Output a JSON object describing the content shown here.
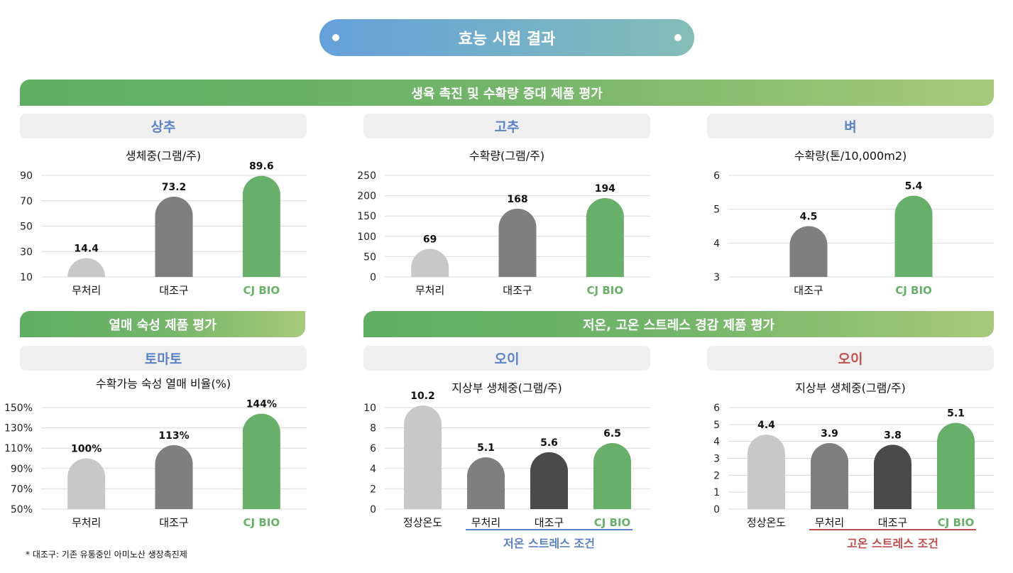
{
  "title": "효능 시험 결과",
  "sections": {
    "growth": "생육 촉진 및 수확량 증대 제품  평가",
    "ripening": "열매 숙성 제품  평가",
    "stress": "저온, 고온 스트레스 경감 제품  평가"
  },
  "colors": {
    "untreated": "#c8c8c8",
    "control": "#7f7f7f",
    "control_dark": "#4b4a4a",
    "cjbio": "#68b06a",
    "blue": "#5b82c4",
    "red": "#c0504d",
    "grid": "#d9d9d9"
  },
  "footnote": "* 대조구: 기존 유통중인 아미노산 생장촉진제",
  "chart_data": [
    {
      "type": "bar",
      "crop": "상추",
      "crop_color": "blue",
      "title": "생체중(그램/주)",
      "categories": [
        "무처리",
        "대조구",
        "CJ BIO"
      ],
      "values": [
        14.4,
        73.2,
        89.6
      ],
      "labels": [
        "14.4",
        "73.2",
        "89.6"
      ],
      "bar_colors": [
        "untreated",
        "control",
        "cjbio"
      ],
      "ylim": [
        10,
        90
      ],
      "yticks": [
        "10",
        "30",
        "50",
        "70",
        "90"
      ],
      "grid": true
    },
    {
      "type": "bar",
      "crop": "고추",
      "crop_color": "blue",
      "title": "수확량(그램/주)",
      "categories": [
        "무처리",
        "대조구",
        "CJ BIO"
      ],
      "values": [
        69,
        168,
        194
      ],
      "labels": [
        "69",
        "168",
        "194"
      ],
      "bar_colors": [
        "untreated",
        "control",
        "cjbio"
      ],
      "ylim": [
        0,
        250
      ],
      "yticks": [
        "0",
        "50",
        "100",
        "150",
        "200",
        "250"
      ],
      "grid": true
    },
    {
      "type": "bar",
      "crop": "벼",
      "crop_color": "blue",
      "title": "수확량(톤/10,000m2)",
      "categories": [
        "대조구",
        "CJ BIO"
      ],
      "values": [
        4.5,
        5.4
      ],
      "labels": [
        "4.5",
        "5.4"
      ],
      "bar_colors": [
        "control",
        "cjbio"
      ],
      "ylim": [
        3,
        6
      ],
      "yticks": [
        "3",
        "4",
        "5",
        "6"
      ],
      "grid": true
    },
    {
      "type": "bar",
      "crop": "토마토",
      "crop_color": "blue",
      "title": "수확가능 숙성 열매 비율(%)",
      "categories": [
        "무처리",
        "대조구",
        "CJ BIO"
      ],
      "values": [
        100,
        113,
        144
      ],
      "labels": [
        "100%",
        "113%",
        "144%"
      ],
      "bar_colors": [
        "untreated",
        "control",
        "cjbio"
      ],
      "ylim": [
        50,
        150
      ],
      "yticks": [
        "50%",
        "70%",
        "90%",
        "110%",
        "130%",
        "150%"
      ],
      "grid": true
    },
    {
      "type": "bar",
      "crop": "오이",
      "crop_color": "blue",
      "title": "지상부 생체중(그램/주)",
      "categories": [
        "정상온도",
        "무처리",
        "대조구",
        "CJ BIO"
      ],
      "values": [
        10.2,
        5.1,
        5.6,
        6.5
      ],
      "labels": [
        "10.2",
        "5.1",
        "5.6",
        "6.5"
      ],
      "bar_colors": [
        "untreated",
        "control",
        "control_dark",
        "cjbio"
      ],
      "ylim": [
        0,
        10
      ],
      "yticks": [
        "0",
        "2",
        "4",
        "6",
        "8",
        "10"
      ],
      "grid": true,
      "group_label": "저온 스트레스 조건"
    },
    {
      "type": "bar",
      "crop": "오이",
      "crop_color": "red",
      "title": "지상부 생체중(그램/주)",
      "categories": [
        "정상온도",
        "무처리",
        "대조구",
        "CJ BIO"
      ],
      "values": [
        4.4,
        3.9,
        3.8,
        5.1
      ],
      "labels": [
        "4.4",
        "3.9",
        "3.8",
        "5.1"
      ],
      "bar_colors": [
        "untreated",
        "control",
        "control_dark",
        "cjbio"
      ],
      "ylim": [
        0,
        6
      ],
      "yticks": [
        "0",
        "1",
        "2",
        "3",
        "4",
        "5",
        "6"
      ],
      "grid": true,
      "group_label": "고온 스트레스 조건"
    }
  ]
}
